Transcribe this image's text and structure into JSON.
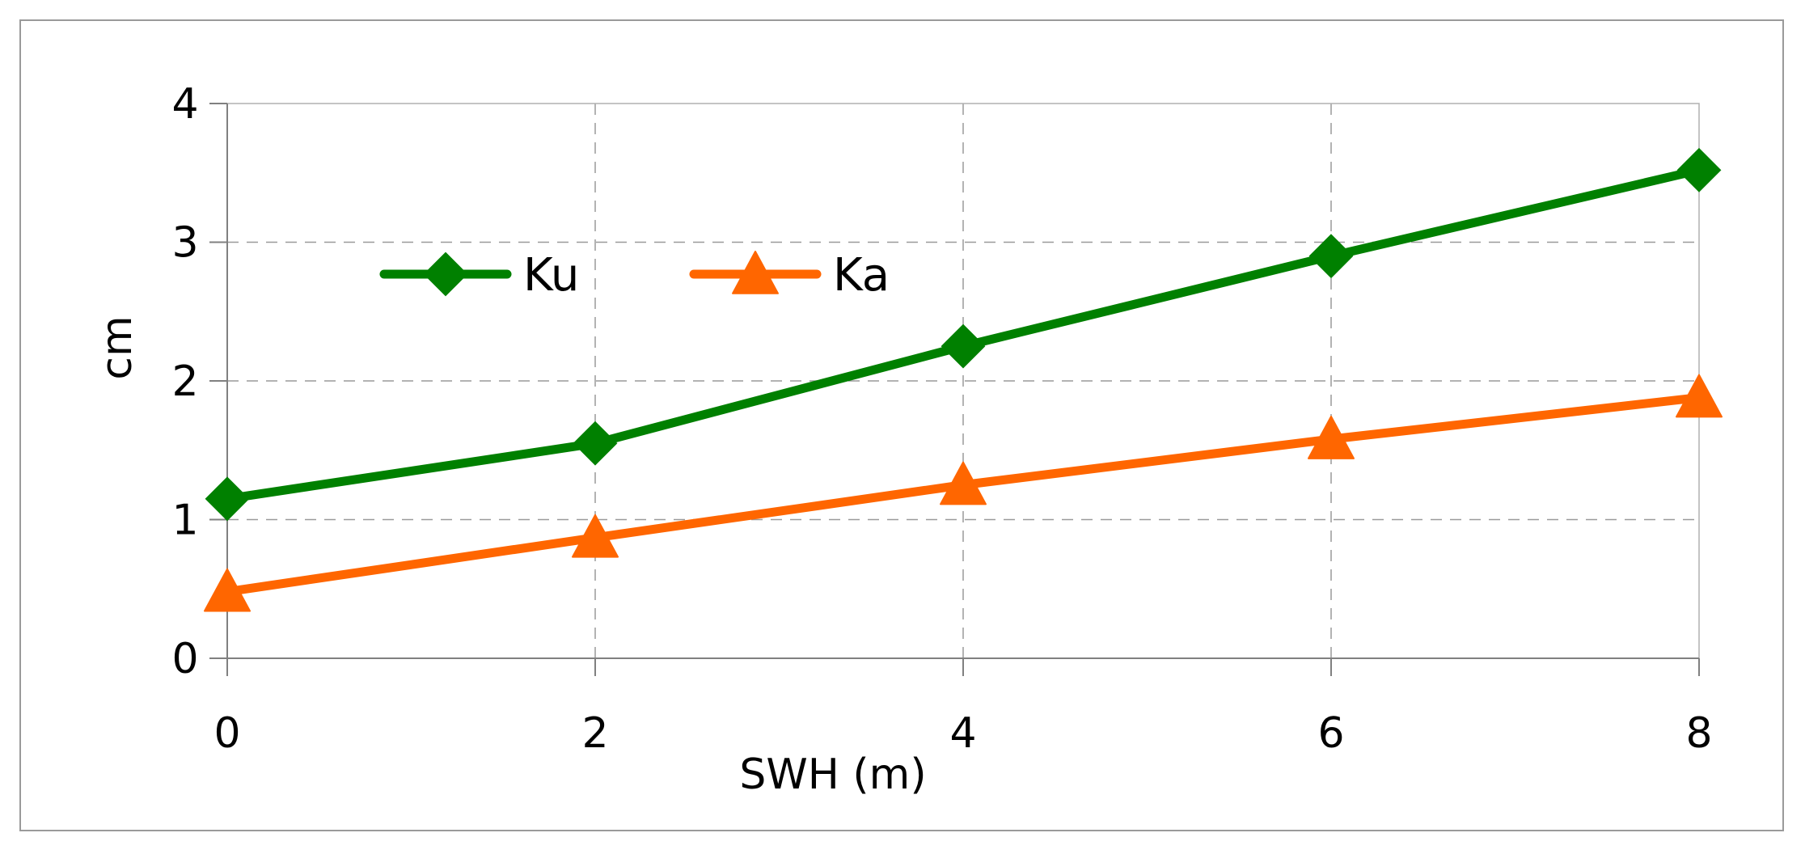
{
  "chart_data": {
    "type": "line",
    "title": "",
    "xlabel": "SWH (m)",
    "ylabel": "cm",
    "x": [
      0,
      2,
      4,
      6,
      8
    ],
    "xlim": [
      0,
      8
    ],
    "ylim": [
      0,
      4
    ],
    "xticks": [
      "0",
      "2",
      "4",
      "6",
      "8"
    ],
    "yticks": [
      "0",
      "1",
      "2",
      "3",
      "4"
    ],
    "grid": true,
    "legend_position": "top-left",
    "series": [
      {
        "name": "Ku",
        "values": [
          1.15,
          1.55,
          2.25,
          2.9,
          3.52
        ],
        "color": "#008000",
        "marker": "diamond"
      },
      {
        "name": "Ka",
        "values": [
          0.48,
          0.87,
          1.25,
          1.58,
          1.88
        ],
        "color": "#ff6600",
        "marker": "triangle"
      }
    ]
  }
}
